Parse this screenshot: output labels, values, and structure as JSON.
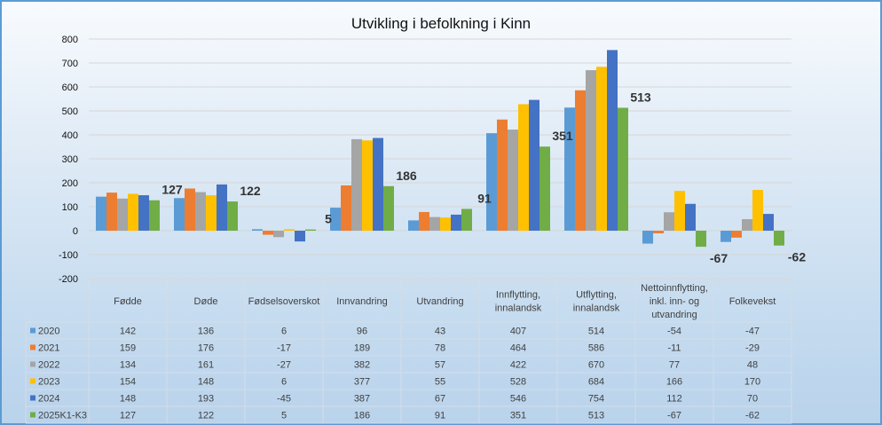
{
  "chart_data": {
    "type": "bar",
    "title": "Utvikling i befolkning i Kinn",
    "xlabel": "",
    "ylabel": "",
    "ylim": [
      -200,
      800
    ],
    "yticks": [
      "800",
      "700",
      "600",
      "500",
      "400",
      "300",
      "200",
      "100",
      "0",
      "-100",
      "-200"
    ],
    "grid": true,
    "legend": "data-table",
    "categories": [
      "Fødde",
      "Døde",
      "Fødselsoverskot",
      "Innvandring",
      "Utvandring",
      "Innflytting, innalandsk",
      "Utflytting, innalandsk",
      "Nettoinnflytting, inkl. inn- og utvandring",
      "Folkevekst"
    ],
    "category_lines": [
      [
        "Fødde"
      ],
      [
        "Døde"
      ],
      [
        "Fødselsoverskot"
      ],
      [
        "Innvandring"
      ],
      [
        "Utvandring"
      ],
      [
        "Innflytting,",
        "innalandsk"
      ],
      [
        "Utflytting,",
        "innalandsk"
      ],
      [
        "Nettoinnflytting,",
        "inkl. inn- og",
        "utvandring"
      ],
      [
        "Folkevekst"
      ]
    ],
    "series": [
      {
        "name": "2020",
        "color": "#5B9BD5",
        "values": [
          142,
          136,
          6,
          96,
          43,
          407,
          514,
          -54,
          -47
        ]
      },
      {
        "name": "2021",
        "color": "#ED7D31",
        "values": [
          159,
          176,
          -17,
          189,
          78,
          464,
          586,
          -11,
          -29
        ]
      },
      {
        "name": "2022",
        "color": "#A5A5A5",
        "values": [
          134,
          161,
          -27,
          382,
          57,
          422,
          670,
          77,
          48
        ]
      },
      {
        "name": "2023",
        "color": "#FFC000",
        "values": [
          154,
          148,
          6,
          377,
          55,
          528,
          684,
          166,
          170
        ]
      },
      {
        "name": "2024",
        "color": "#4472C4",
        "values": [
          148,
          193,
          -45,
          387,
          67,
          546,
          754,
          112,
          70
        ]
      },
      {
        "name": "2025K1-K3",
        "color": "#70AD47",
        "values": [
          127,
          122,
          5,
          186,
          91,
          351,
          513,
          -67,
          -62
        ]
      }
    ],
    "data_labels_series": "2025K1-K3"
  }
}
